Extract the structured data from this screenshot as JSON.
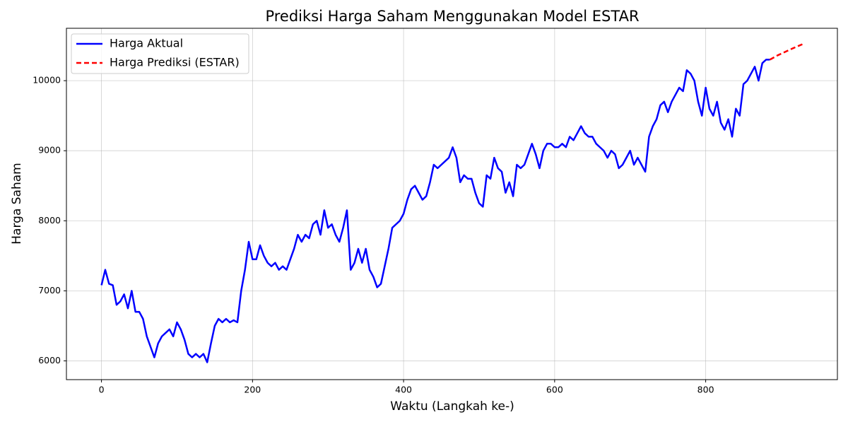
{
  "chart_data": {
    "type": "line",
    "title": "Prediksi Harga Saham Menggunakan Model ESTAR",
    "x_label": "Waktu (Langkah ke-)",
    "y_label": "Harga Saham",
    "xlim": [
      -46.4,
      974.4
    ],
    "ylim": [
      5732,
      10748
    ],
    "xticks": [
      0,
      200,
      400,
      600,
      800
    ],
    "yticks": [
      6000,
      7000,
      8000,
      9000,
      10000
    ],
    "grid": true,
    "legend": "upper left",
    "series": [
      {
        "name": "Harga Aktual",
        "color": "#0000ff",
        "dash": "solid",
        "x": [
          0,
          5,
          10,
          15,
          20,
          25,
          30,
          35,
          40,
          45,
          50,
          55,
          60,
          65,
          70,
          75,
          80,
          85,
          90,
          95,
          100,
          105,
          110,
          115,
          120,
          125,
          130,
          135,
          140,
          145,
          150,
          155,
          160,
          165,
          170,
          175,
          180,
          185,
          190,
          195,
          200,
          205,
          210,
          215,
          220,
          225,
          230,
          235,
          240,
          245,
          250,
          255,
          260,
          265,
          270,
          275,
          280,
          285,
          290,
          295,
          300,
          305,
          310,
          315,
          320,
          325,
          330,
          335,
          340,
          345,
          350,
          355,
          360,
          365,
          370,
          375,
          380,
          385,
          390,
          395,
          400,
          405,
          410,
          415,
          420,
          425,
          430,
          435,
          440,
          445,
          450,
          455,
          460,
          465,
          470,
          475,
          480,
          485,
          490,
          495,
          500,
          505,
          510,
          515,
          520,
          525,
          530,
          535,
          540,
          545,
          550,
          555,
          560,
          565,
          570,
          575,
          580,
          585,
          590,
          595,
          600,
          605,
          610,
          615,
          620,
          625,
          630,
          635,
          640,
          645,
          650,
          655,
          660,
          665,
          670,
          675,
          680,
          685,
          690,
          695,
          700,
          705,
          710,
          715,
          720,
          725,
          730,
          735,
          740,
          745,
          750,
          755,
          760,
          765,
          770,
          775,
          780,
          785,
          790,
          795,
          800,
          805,
          810,
          815,
          820,
          825,
          830,
          835,
          840,
          845,
          850,
          855,
          860,
          865,
          870,
          875,
          880,
          885
        ],
        "values": [
          7080,
          7300,
          7100,
          7080,
          6800,
          6850,
          6950,
          6750,
          7000,
          6700,
          6700,
          6600,
          6350,
          6200,
          6050,
          6250,
          6350,
          6400,
          6450,
          6350,
          6550,
          6450,
          6300,
          6100,
          6050,
          6100,
          6050,
          6100,
          5980,
          6250,
          6500,
          6600,
          6550,
          6600,
          6550,
          6580,
          6550,
          7000,
          7300,
          7700,
          7450,
          7450,
          7650,
          7500,
          7400,
          7350,
          7400,
          7300,
          7350,
          7300,
          7450,
          7600,
          7800,
          7700,
          7800,
          7750,
          7950,
          8000,
          7800,
          8150,
          7900,
          7950,
          7800,
          7700,
          7900,
          8150,
          7300,
          7400,
          7600,
          7400,
          7600,
          7300,
          7200,
          7050,
          7100,
          7350,
          7600,
          7900,
          7950,
          8000,
          8100,
          8300,
          8450,
          8500,
          8400,
          8300,
          8350,
          8550,
          8800,
          8750,
          8800,
          8850,
          8900,
          9050,
          8900,
          8550,
          8650,
          8600,
          8600,
          8400,
          8250,
          8200,
          8650,
          8600,
          8900,
          8750,
          8700,
          8400,
          8550,
          8350,
          8800,
          8750,
          8800,
          8950,
          9100,
          8950,
          8750,
          9000,
          9100,
          9100,
          9050,
          9050,
          9100,
          9050,
          9200,
          9150,
          9250,
          9350,
          9250,
          9200,
          9200,
          9100,
          9050,
          9000,
          8900,
          9000,
          8950,
          8750,
          8800,
          8900,
          9000,
          8800,
          8900,
          8800,
          8700,
          9200,
          9350,
          9450,
          9650,
          9700,
          9550,
          9700,
          9800,
          9900,
          9850,
          10150,
          10100,
          10000,
          9700,
          9500,
          9900,
          9600,
          9500,
          9700,
          9400,
          9300,
          9450,
          9200,
          9600,
          9500,
          9950,
          10000,
          10100,
          10200,
          10000,
          10250,
          10300,
          10300
        ]
      },
      {
        "name": "Harga Prediksi (ESTAR)",
        "color": "#ff0000",
        "dash": "dashed",
        "x": [
          885,
          895,
          905,
          915,
          928
        ],
        "values": [
          10300,
          10360,
          10410,
          10460,
          10520
        ]
      }
    ]
  }
}
